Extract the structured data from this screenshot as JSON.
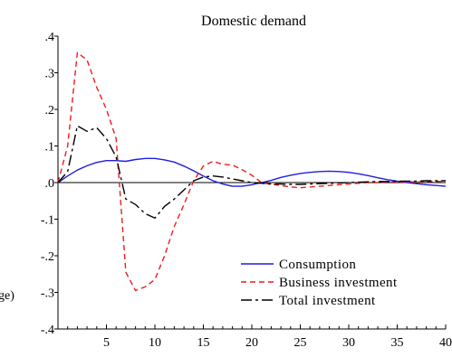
{
  "chart_data": {
    "type": "line",
    "title": "Domestic demand",
    "ylabel_fragment": "ge)",
    "xlim": [
      0,
      40
    ],
    "ylim": [
      -0.4,
      0.4
    ],
    "x_ticks": [
      5,
      10,
      15,
      20,
      25,
      30,
      35,
      40
    ],
    "x_tick_labels": [
      "5",
      "10",
      "15",
      "20",
      "25",
      "30",
      "35",
      "40"
    ],
    "y_ticks": [
      0.4,
      0.3,
      0.2,
      0.1,
      0.0,
      -0.1,
      -0.2,
      -0.3,
      -0.4
    ],
    "y_tick_labels": [
      ".4",
      ".3",
      ".2",
      ".1",
      ".0",
      "-.1",
      "-.2",
      "-.3",
      "-.4"
    ],
    "zero_line": true,
    "grid": false,
    "legend_position": "bottom-right",
    "series": [
      {
        "name": "Consumption",
        "color": "#1f1fdc",
        "dash": "solid",
        "x": [
          0,
          1,
          2,
          3,
          4,
          5,
          6,
          7,
          8,
          9,
          10,
          11,
          12,
          13,
          14,
          15,
          16,
          17,
          18,
          19,
          20,
          21,
          22,
          23,
          24,
          25,
          26,
          27,
          28,
          29,
          30,
          31,
          32,
          33,
          34,
          35,
          36,
          37,
          38,
          39,
          40
        ],
        "values": [
          0.0,
          0.018,
          0.034,
          0.046,
          0.055,
          0.06,
          0.06,
          0.058,
          0.063,
          0.066,
          0.066,
          0.062,
          0.056,
          0.045,
          0.032,
          0.018,
          0.005,
          -0.004,
          -0.01,
          -0.01,
          -0.006,
          0.0,
          0.006,
          0.014,
          0.02,
          0.025,
          0.028,
          0.03,
          0.031,
          0.03,
          0.028,
          0.024,
          0.019,
          0.013,
          0.008,
          0.004,
          0.0,
          -0.003,
          -0.006,
          -0.008,
          -0.01
        ]
      },
      {
        "name": "Business investment",
        "color": "#ee1c1c",
        "dash": "6,4",
        "x": [
          0,
          1,
          2,
          3,
          4,
          5,
          6,
          7,
          8,
          9,
          10,
          11,
          12,
          13,
          14,
          15,
          16,
          17,
          18,
          19,
          20,
          21,
          22,
          23,
          24,
          25,
          26,
          27,
          28,
          29,
          30,
          31,
          32,
          33,
          34,
          35,
          36,
          37,
          38,
          39,
          40
        ],
        "values": [
          0.0,
          0.1,
          0.355,
          0.335,
          0.26,
          0.2,
          0.12,
          -0.245,
          -0.295,
          -0.285,
          -0.265,
          -0.2,
          -0.12,
          -0.06,
          0.005,
          0.045,
          0.058,
          0.05,
          0.048,
          0.035,
          0.02,
          0.0,
          -0.005,
          -0.008,
          -0.012,
          -0.014,
          -0.012,
          -0.01,
          -0.008,
          -0.006,
          -0.004,
          -0.002,
          0.0,
          0.0,
          0.002,
          0.002,
          0.002,
          0.002,
          0.003,
          0.003,
          0.004
        ]
      },
      {
        "name": "Total investment",
        "color": "#000000",
        "dash": "12,4,3,4",
        "x": [
          0,
          1,
          2,
          3,
          4,
          5,
          6,
          7,
          8,
          9,
          10,
          11,
          12,
          13,
          14,
          15,
          16,
          17,
          18,
          19,
          20,
          21,
          22,
          23,
          24,
          25,
          26,
          27,
          28,
          29,
          30,
          31,
          32,
          33,
          34,
          35,
          36,
          37,
          38,
          39,
          40
        ],
        "values": [
          0.0,
          0.03,
          0.155,
          0.14,
          0.15,
          0.12,
          0.07,
          -0.045,
          -0.06,
          -0.085,
          -0.097,
          -0.065,
          -0.045,
          -0.02,
          0.005,
          0.015,
          0.018,
          0.015,
          0.01,
          0.005,
          0.0,
          -0.002,
          -0.004,
          -0.004,
          -0.005,
          -0.005,
          -0.004,
          -0.003,
          -0.002,
          -0.001,
          0.0,
          0.001,
          0.002,
          0.003,
          0.003,
          0.004,
          0.004,
          0.004,
          0.005,
          0.005,
          0.005
        ]
      }
    ]
  }
}
